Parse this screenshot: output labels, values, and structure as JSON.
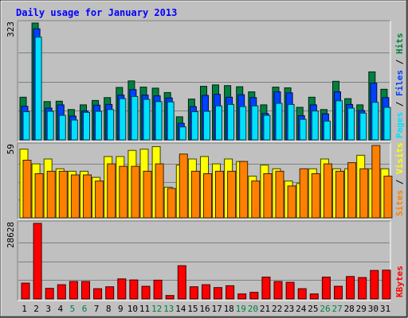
{
  "chart_data": {
    "type": "bar",
    "title": "Daily usage for January 2013",
    "categories": [
      "1",
      "2",
      "3",
      "4",
      "5",
      "6",
      "7",
      "8",
      "9",
      "10",
      "11",
      "12",
      "13",
      "14",
      "15",
      "16",
      "17",
      "18",
      "19",
      "20",
      "21",
      "22",
      "23",
      "24",
      "25",
      "26",
      "27",
      "28",
      "29",
      "30",
      "31"
    ],
    "weekend_days": [
      "5",
      "6",
      "12",
      "13",
      "19",
      "20",
      "26",
      "27"
    ],
    "colors": {
      "background": "#c0c0c0",
      "title": "#0000ff",
      "hits": "#008040",
      "files": "#0040ff",
      "pages": "#00e0ff",
      "visits": "#ffff00",
      "sites": "#ff8000",
      "kbytes": "#ff0000",
      "weekday_label": "#000000",
      "weekend_label": "#008040"
    },
    "panels": [
      {
        "id": "hits-files-pages",
        "max_label": "323",
        "ymax": 323,
        "legend": [
          {
            "text": "Pages",
            "color": "#00e0ff"
          },
          {
            "text": " / ",
            "color": "#000000"
          },
          {
            "text": "Files",
            "color": "#0040ff"
          },
          {
            "text": " / ",
            "color": "#000000"
          },
          {
            "text": "Hits",
            "color": "#008040"
          }
        ],
        "series": [
          {
            "name": "Hits",
            "color": "#008040",
            "values": [
              118,
              323,
              106,
              107,
              84,
              97,
              109,
              117,
              145,
              163,
              146,
              143,
              131,
              64,
              113,
              148,
              152,
              150,
              147,
              133,
              97,
              146,
              144,
              90,
              118,
              84,
              162,
              114,
              97,
              188,
              140
            ]
          },
          {
            "name": "Files",
            "color": "#0040ff",
            "values": [
              93,
              307,
              88,
              97,
              66,
              80,
              96,
              98,
              124,
              139,
              124,
              122,
              116,
              46,
              92,
              123,
              126,
              118,
              125,
              117,
              73,
              133,
              130,
              67,
              97,
              72,
              133,
              98,
              81,
              157,
              117
            ]
          },
          {
            "name": "Pages",
            "color": "#00e0ff",
            "values": [
              78,
              284,
              79,
              68,
              55,
              76,
              79,
              84,
              114,
              120,
              112,
              106,
              105,
              36,
              78,
              79,
              94,
              98,
              92,
              94,
              68,
              101,
              98,
              57,
              80,
              52,
              108,
              88,
              74,
              104,
              90
            ]
          }
        ]
      },
      {
        "id": "visits-sites",
        "max_label": "59",
        "ymax": 59,
        "legend": [
          {
            "text": "Sites",
            "color": "#ff8000"
          },
          {
            "text": " / ",
            "color": "#000000"
          },
          {
            "text": "Visits",
            "color": "#ffff00"
          }
        ],
        "series": [
          {
            "name": "Visits",
            "color": "#ffff00",
            "values": [
              56,
              44,
              48,
              40,
              38,
              38,
              33,
              50,
              50,
              55,
              56,
              58,
              25,
              43,
              48,
              50,
              44,
              48,
              46,
              34,
              43,
              40,
              30,
              28,
              40,
              48,
              40,
              40,
              51,
              40,
              40
            ]
          },
          {
            "name": "Sites",
            "color": "#ff8000",
            "values": [
              47,
              36,
              38,
              38,
              35,
              35,
              30,
              44,
              42,
              42,
              38,
              44,
              24,
              52,
              38,
              36,
              38,
              38,
              46,
              30,
              36,
              38,
              26,
              40,
              36,
              44,
              38,
              45,
              40,
              59,
              34
            ]
          }
        ]
      },
      {
        "id": "kbytes",
        "max_label": "28628",
        "ymax": 28628,
        "legend": [
          {
            "text": "KBytes",
            "color": "#ff0000"
          }
        ],
        "series": [
          {
            "name": "KBytes",
            "color": "#ff0000",
            "values": [
              6000,
              28628,
              4000,
              5400,
              6600,
              6600,
              3900,
              4600,
              7600,
              7200,
              4800,
              7100,
              1300,
              12600,
              4600,
              5400,
              4300,
              5000,
              1900,
              2500,
              8300,
              6600,
              6300,
              3900,
              1900,
              8300,
              4800,
              8500,
              8100,
              10800,
              10900
            ]
          }
        ]
      }
    ]
  }
}
